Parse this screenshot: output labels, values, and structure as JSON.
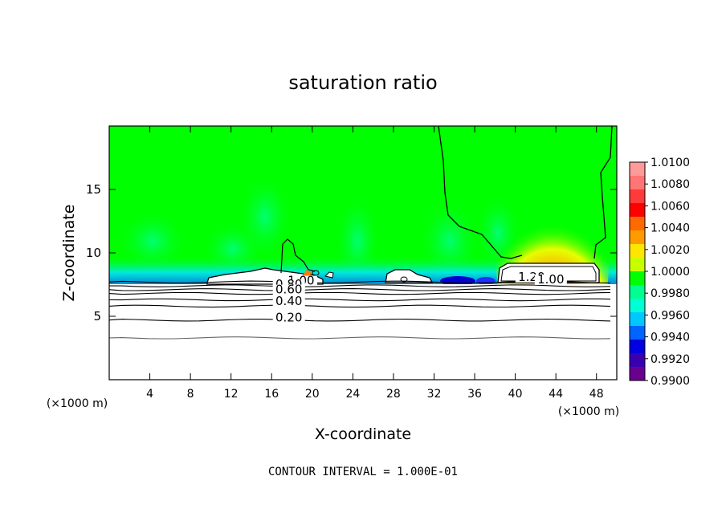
{
  "chart_data": {
    "type": "heatmap",
    "title": "saturation ratio",
    "xlabel": "X-coordinate",
    "ylabel": "Z-coordinate",
    "x_unit": "(×1000 m)",
    "y_unit": "(×1000 m)",
    "xlim": [
      0,
      50
    ],
    "ylim": [
      0,
      20
    ],
    "xticks": [
      4,
      8,
      12,
      16,
      20,
      24,
      28,
      32,
      36,
      40,
      44,
      48
    ],
    "yticks": [
      5,
      10,
      15
    ],
    "footer": "CONTOUR INTERVAL = 1.000E-01",
    "colorbar": {
      "levels": [
        "1.0100",
        "1.0080",
        "1.0060",
        "1.0040",
        "1.0020",
        "1.0000",
        "0.9980",
        "0.9960",
        "0.9940",
        "0.9920",
        "0.9900"
      ],
      "colors": [
        "#ff9a9a",
        "#ff7575",
        "#ff3a3a",
        "#ff0000",
        "#ff6a00",
        "#ff9a00",
        "#ffe600",
        "#c8ff00",
        "#00ff00",
        "#00ff90",
        "#00ffd5",
        "#00c8ff",
        "#0064ff",
        "#0000e0",
        "#3a00b0",
        "#6a008f"
      ]
    },
    "background_color": "#00ff00",
    "contour_labels": [
      {
        "text": "1.00",
        "x": 18.9,
        "z": 7.5
      },
      {
        "text": "0.80",
        "x": 17.7,
        "z": 7.2
      },
      {
        "text": "0.60",
        "x": 17.7,
        "z": 6.8
      },
      {
        "text": "0.40",
        "x": 17.7,
        "z": 5.9
      },
      {
        "text": "0.20",
        "x": 17.7,
        "z": 4.6
      },
      {
        "text": "1.20",
        "x": 41.6,
        "z": 7.8
      },
      {
        "text": "1.00",
        "x": 43.5,
        "z": 7.6
      }
    ],
    "contour_levels_z": [
      7.7,
      7.4,
      7.1,
      6.8,
      6.3,
      5.8,
      4.7,
      3.3
    ]
  }
}
